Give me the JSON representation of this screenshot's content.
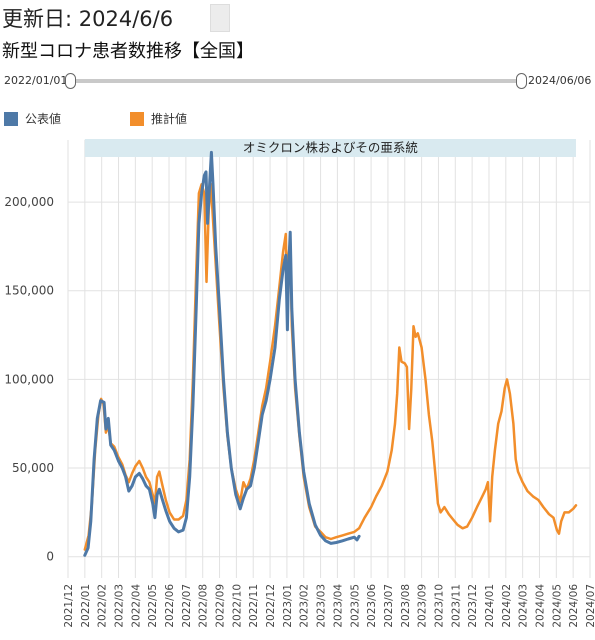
{
  "header": {
    "updated": "更新日: 2024/6/6",
    "title": "新型コロナ患者数推移【全国】"
  },
  "slider": {
    "start_label": "2022/01/01",
    "end_label": "2024/06/06",
    "start_fraction": 0,
    "end_fraction": 1
  },
  "legend": [
    {
      "label": "公表値",
      "color": "#4e79a7"
    },
    {
      "label": "推計値",
      "color": "#f28e2b"
    }
  ],
  "chart_data": {
    "type": "line",
    "title": "",
    "xlabel": "",
    "ylabel": "",
    "ylim": [
      -12000,
      235000
    ],
    "xlim": [
      "2021-12",
      "2024-07"
    ],
    "yticks": [
      0,
      50000,
      100000,
      150000,
      200000
    ],
    "ytick_labels": [
      "0",
      "50,000",
      "100,000",
      "150,000",
      "200,000"
    ],
    "xtick_labels": [
      "2021/12",
      "2022/01",
      "2022/02",
      "2022/03",
      "2022/04",
      "2022/05",
      "2022/06",
      "2022/07",
      "2022/08",
      "2022/09",
      "2022/10",
      "2022/11",
      "2022/12",
      "2023/01",
      "2023/02",
      "2023/03",
      "2023/04",
      "2023/05",
      "2023/06",
      "2023/07",
      "2023/08",
      "2023/09",
      "2023/10",
      "2023/11",
      "2023/12",
      "2024/01",
      "2024/02",
      "2024/03",
      "2024/04",
      "2024/05",
      "2024/06",
      "2024/07"
    ],
    "grid": true,
    "band": {
      "label": "オミクロン株およびその亜系統",
      "color": "#d9eaf0"
    },
    "series": [
      {
        "name": "公表値",
        "color": "#4e79a7",
        "points": [
          [
            "2022-01-01",
            800
          ],
          [
            "2022-01-07",
            5000
          ],
          [
            "2022-01-12",
            20000
          ],
          [
            "2022-01-18",
            55000
          ],
          [
            "2022-01-24",
            78000
          ],
          [
            "2022-01-30",
            88000
          ],
          [
            "2022-02-05",
            87000
          ],
          [
            "2022-02-08",
            72000
          ],
          [
            "2022-02-12",
            78000
          ],
          [
            "2022-02-16",
            63000
          ],
          [
            "2022-02-22",
            60000
          ],
          [
            "2022-03-01",
            54000
          ],
          [
            "2022-03-08",
            50000
          ],
          [
            "2022-03-14",
            45000
          ],
          [
            "2022-03-20",
            37000
          ],
          [
            "2022-03-26",
            40000
          ],
          [
            "2022-04-01",
            45000
          ],
          [
            "2022-04-08",
            47000
          ],
          [
            "2022-04-14",
            44000
          ],
          [
            "2022-04-20",
            40000
          ],
          [
            "2022-04-26",
            38000
          ],
          [
            "2022-05-02",
            30000
          ],
          [
            "2022-05-06",
            22000
          ],
          [
            "2022-05-10",
            35000
          ],
          [
            "2022-05-14",
            38000
          ],
          [
            "2022-05-20",
            32000
          ],
          [
            "2022-05-26",
            26000
          ],
          [
            "2022-06-02",
            20000
          ],
          [
            "2022-06-10",
            16000
          ],
          [
            "2022-06-18",
            14000
          ],
          [
            "2022-06-26",
            15000
          ],
          [
            "2022-07-02",
            22000
          ],
          [
            "2022-07-08",
            45000
          ],
          [
            "2022-07-14",
            85000
          ],
          [
            "2022-07-20",
            140000
          ],
          [
            "2022-07-25",
            188000
          ],
          [
            "2022-07-30",
            205000
          ],
          [
            "2022-08-04",
            215000
          ],
          [
            "2022-08-07",
            217000
          ],
          [
            "2022-08-10",
            188000
          ],
          [
            "2022-08-14",
            212000
          ],
          [
            "2022-08-17",
            228000
          ],
          [
            "2022-08-20",
            210000
          ],
          [
            "2022-08-25",
            175000
          ],
          [
            "2022-09-01",
            140000
          ],
          [
            "2022-09-08",
            100000
          ],
          [
            "2022-09-15",
            70000
          ],
          [
            "2022-09-22",
            50000
          ],
          [
            "2022-09-30",
            35000
          ],
          [
            "2022-10-08",
            27000
          ],
          [
            "2022-10-14",
            33000
          ],
          [
            "2022-10-20",
            38000
          ],
          [
            "2022-10-27",
            40000
          ],
          [
            "2022-11-03",
            50000
          ],
          [
            "2022-11-10",
            65000
          ],
          [
            "2022-11-17",
            80000
          ],
          [
            "2022-11-24",
            88000
          ],
          [
            "2022-12-01",
            100000
          ],
          [
            "2022-12-10",
            118000
          ],
          [
            "2022-12-18",
            145000
          ],
          [
            "2022-12-25",
            162000
          ],
          [
            "2022-12-30",
            170000
          ],
          [
            "2023-01-02",
            128000
          ],
          [
            "2023-01-04",
            160000
          ],
          [
            "2023-01-07",
            183000
          ],
          [
            "2023-01-10",
            140000
          ],
          [
            "2023-01-16",
            100000
          ],
          [
            "2023-01-24",
            70000
          ],
          [
            "2023-02-01",
            48000
          ],
          [
            "2023-02-10",
            30000
          ],
          [
            "2023-02-20",
            18000
          ],
          [
            "2023-03-01",
            12000
          ],
          [
            "2023-03-10",
            9000
          ],
          [
            "2023-03-20",
            7500
          ],
          [
            "2023-03-30",
            8000
          ],
          [
            "2023-04-10",
            9000
          ],
          [
            "2023-04-20",
            10000
          ],
          [
            "2023-05-01",
            11000
          ],
          [
            "2023-05-06",
            9500
          ],
          [
            "2023-05-10",
            11500
          ]
        ]
      },
      {
        "name": "推計値",
        "color": "#f28e2b",
        "points": [
          [
            "2022-01-01",
            4000
          ],
          [
            "2022-01-08",
            12000
          ],
          [
            "2022-01-14",
            30000
          ],
          [
            "2022-01-20",
            60000
          ],
          [
            "2022-01-26",
            80000
          ],
          [
            "2022-01-31",
            89000
          ],
          [
            "2022-02-04",
            86000
          ],
          [
            "2022-02-08",
            70000
          ],
          [
            "2022-02-12",
            74000
          ],
          [
            "2022-02-16",
            64000
          ],
          [
            "2022-02-22",
            62000
          ],
          [
            "2022-03-01",
            56000
          ],
          [
            "2022-03-08",
            52000
          ],
          [
            "2022-03-14",
            46000
          ],
          [
            "2022-03-20",
            42000
          ],
          [
            "2022-03-26",
            47000
          ],
          [
            "2022-04-01",
            51000
          ],
          [
            "2022-04-08",
            54000
          ],
          [
            "2022-04-14",
            50000
          ],
          [
            "2022-04-20",
            45000
          ],
          [
            "2022-04-26",
            42000
          ],
          [
            "2022-05-02",
            35000
          ],
          [
            "2022-05-06",
            30000
          ],
          [
            "2022-05-10",
            45000
          ],
          [
            "2022-05-14",
            48000
          ],
          [
            "2022-05-20",
            40000
          ],
          [
            "2022-05-26",
            32000
          ],
          [
            "2022-06-02",
            25000
          ],
          [
            "2022-06-10",
            21000
          ],
          [
            "2022-06-18",
            21000
          ],
          [
            "2022-06-26",
            23000
          ],
          [
            "2022-07-02",
            32000
          ],
          [
            "2022-07-08",
            55000
          ],
          [
            "2022-07-14",
            100000
          ],
          [
            "2022-07-20",
            160000
          ],
          [
            "2022-07-25",
            205000
          ],
          [
            "2022-07-30",
            210000
          ],
          [
            "2022-08-04",
            205000
          ],
          [
            "2022-08-08",
            155000
          ],
          [
            "2022-08-12",
            195000
          ],
          [
            "2022-08-16",
            210000
          ],
          [
            "2022-08-20",
            190000
          ],
          [
            "2022-08-25",
            165000
          ],
          [
            "2022-09-01",
            130000
          ],
          [
            "2022-09-08",
            95000
          ],
          [
            "2022-09-15",
            68000
          ],
          [
            "2022-09-22",
            50000
          ],
          [
            "2022-09-30",
            38000
          ],
          [
            "2022-10-08",
            31000
          ],
          [
            "2022-10-14",
            42000
          ],
          [
            "2022-10-20",
            38000
          ],
          [
            "2022-10-27",
            44000
          ],
          [
            "2022-11-03",
            55000
          ],
          [
            "2022-11-10",
            70000
          ],
          [
            "2022-11-17",
            85000
          ],
          [
            "2022-11-24",
            95000
          ],
          [
            "2022-12-01",
            110000
          ],
          [
            "2022-12-10",
            130000
          ],
          [
            "2022-12-18",
            152000
          ],
          [
            "2022-12-25",
            172000
          ],
          [
            "2022-12-30",
            182000
          ],
          [
            "2023-01-02",
            132000
          ],
          [
            "2023-01-04",
            170000
          ],
          [
            "2023-01-07",
            178000
          ],
          [
            "2023-01-10",
            130000
          ],
          [
            "2023-01-16",
            95000
          ],
          [
            "2023-01-24",
            68000
          ],
          [
            "2023-02-01",
            45000
          ],
          [
            "2023-02-10",
            28000
          ],
          [
            "2023-02-20",
            17000
          ],
          [
            "2023-03-01",
            14000
          ],
          [
            "2023-03-10",
            11000
          ],
          [
            "2023-03-20",
            10000
          ],
          [
            "2023-03-30",
            11000
          ],
          [
            "2023-04-10",
            12000
          ],
          [
            "2023-04-20",
            13000
          ],
          [
            "2023-05-01",
            14000
          ],
          [
            "2023-05-10",
            16000
          ],
          [
            "2023-05-20",
            22000
          ],
          [
            "2023-06-01",
            28000
          ],
          [
            "2023-06-10",
            34000
          ],
          [
            "2023-06-20",
            40000
          ],
          [
            "2023-06-30",
            48000
          ],
          [
            "2023-07-08",
            60000
          ],
          [
            "2023-07-14",
            75000
          ],
          [
            "2023-07-18",
            92000
          ],
          [
            "2023-07-22",
            118000
          ],
          [
            "2023-07-26",
            110000
          ],
          [
            "2023-08-01",
            109000
          ],
          [
            "2023-08-05",
            107000
          ],
          [
            "2023-08-09",
            72000
          ],
          [
            "2023-08-13",
            95000
          ],
          [
            "2023-08-17",
            130000
          ],
          [
            "2023-08-21",
            124000
          ],
          [
            "2023-08-25",
            126000
          ],
          [
            "2023-09-01",
            118000
          ],
          [
            "2023-09-08",
            100000
          ],
          [
            "2023-09-14",
            80000
          ],
          [
            "2023-09-20",
            65000
          ],
          [
            "2023-09-26",
            45000
          ],
          [
            "2023-09-30",
            30000
          ],
          [
            "2023-10-05",
            25000
          ],
          [
            "2023-10-12",
            28000
          ],
          [
            "2023-10-20",
            24000
          ],
          [
            "2023-10-28",
            21000
          ],
          [
            "2023-11-05",
            18000
          ],
          [
            "2023-11-14",
            16000
          ],
          [
            "2023-11-22",
            17000
          ],
          [
            "2023-12-01",
            22000
          ],
          [
            "2023-12-10",
            28000
          ],
          [
            "2023-12-18",
            33000
          ],
          [
            "2023-12-26",
            38000
          ],
          [
            "2023-12-30",
            42000
          ],
          [
            "2024-01-03",
            20000
          ],
          [
            "2024-01-07",
            45000
          ],
          [
            "2024-01-12",
            60000
          ],
          [
            "2024-01-18",
            75000
          ],
          [
            "2024-01-24",
            82000
          ],
          [
            "2024-01-30",
            95000
          ],
          [
            "2024-02-03",
            100000
          ],
          [
            "2024-02-08",
            92000
          ],
          [
            "2024-02-14",
            75000
          ],
          [
            "2024-02-18",
            55000
          ],
          [
            "2024-02-22",
            48000
          ],
          [
            "2024-03-01",
            42000
          ],
          [
            "2024-03-10",
            37000
          ],
          [
            "2024-03-20",
            34000
          ],
          [
            "2024-03-30",
            32000
          ],
          [
            "2024-04-08",
            28000
          ],
          [
            "2024-04-18",
            24000
          ],
          [
            "2024-04-26",
            22000
          ],
          [
            "2024-05-02",
            15000
          ],
          [
            "2024-05-06",
            13000
          ],
          [
            "2024-05-10",
            20000
          ],
          [
            "2024-05-16",
            25000
          ],
          [
            "2024-05-24",
            25000
          ],
          [
            "2024-06-01",
            27000
          ],
          [
            "2024-06-06",
            29000
          ]
        ]
      }
    ]
  }
}
